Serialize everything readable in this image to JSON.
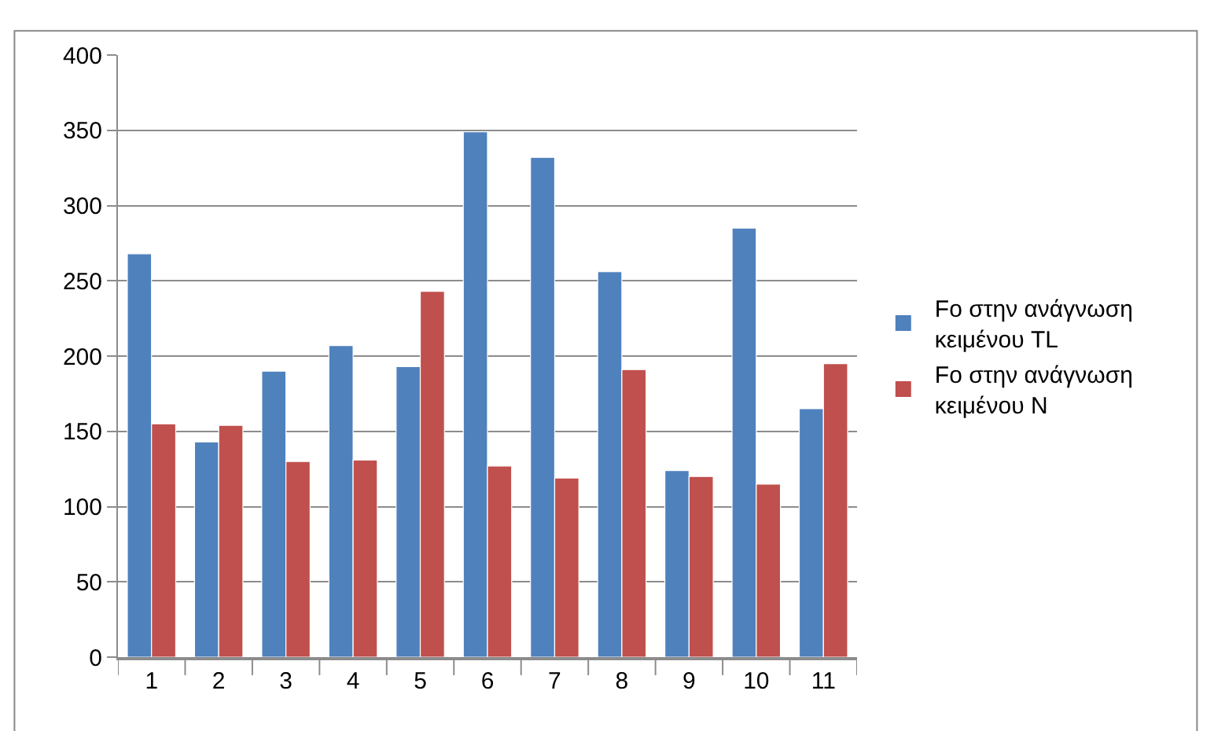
{
  "chart_data": {
    "type": "bar",
    "categories": [
      "1",
      "2",
      "3",
      "4",
      "5",
      "6",
      "7",
      "8",
      "9",
      "10",
      "11"
    ],
    "series": [
      {
        "name": "Fo στην ανάγνωση κειμένου TL",
        "color": "#4f81bd",
        "values": [
          268,
          143,
          190,
          207,
          193,
          349,
          332,
          256,
          124,
          285,
          165
        ]
      },
      {
        "name": "Fo στην ανάγνωση κειμένου N",
        "color": "#c0504d",
        "values": [
          155,
          154,
          130,
          131,
          243,
          127,
          119,
          191,
          120,
          115,
          195
        ]
      }
    ],
    "ylim": [
      0,
      400
    ],
    "yticks": [
      0,
      50,
      100,
      150,
      200,
      250,
      300,
      350,
      400
    ],
    "grid": "y",
    "legend": "right"
  }
}
